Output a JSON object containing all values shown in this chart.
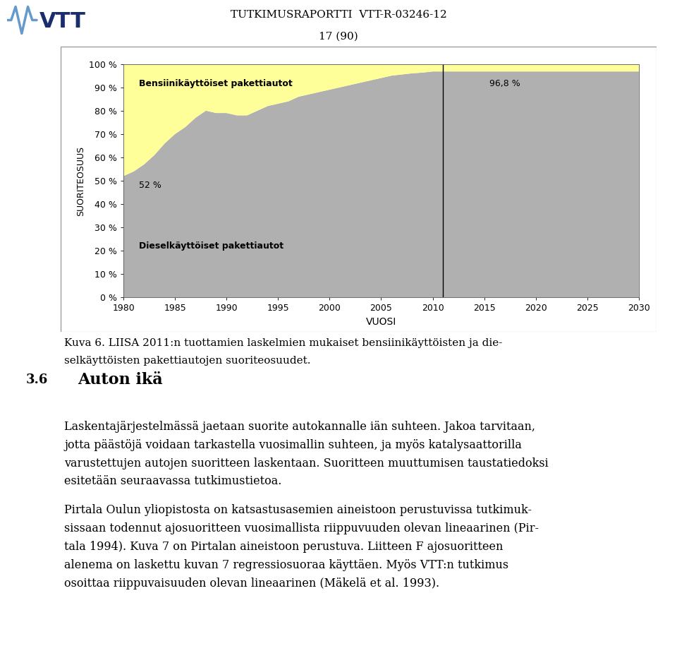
{
  "title_line1": "TUTKIMUSRAPORTTI  VTT-R-03246-12",
  "title_line2": "17 (90)",
  "ylabel": "SUORITEOSUUS",
  "xlabel": "VUOSI",
  "years": [
    1980,
    1981,
    1982,
    1983,
    1984,
    1985,
    1986,
    1987,
    1988,
    1989,
    1990,
    1991,
    1992,
    1993,
    1994,
    1995,
    1996,
    1997,
    1998,
    1999,
    2000,
    2001,
    2002,
    2003,
    2004,
    2005,
    2006,
    2007,
    2008,
    2009,
    2010,
    2011,
    2012,
    2013,
    2014,
    2015,
    2016,
    2017,
    2018,
    2019,
    2020,
    2021,
    2022,
    2023,
    2024,
    2025,
    2026,
    2027,
    2028,
    2029,
    2030
  ],
  "diesel_share": [
    52,
    54,
    57,
    61,
    66,
    70,
    73,
    77,
    80,
    79,
    79,
    78,
    78,
    80,
    82,
    83,
    84,
    86,
    87,
    88,
    89,
    90,
    91,
    92,
    93,
    94,
    95,
    95.5,
    96,
    96.3,
    96.8,
    96.8,
    96.8,
    96.8,
    96.8,
    96.8,
    96.8,
    96.8,
    96.8,
    96.8,
    96.8,
    96.8,
    96.8,
    96.8,
    96.8,
    96.8,
    96.8,
    96.8,
    96.8,
    96.8,
    96.8
  ],
  "diesel_color": "#b0b0b0",
  "petrol_color": "#ffff99",
  "vline_x": 2011,
  "vline_color": "#000000",
  "annotation_52": "52 %",
  "annotation_968": "96,8 %",
  "label_diesel": "Dieselkäyttöiset pakettiautot",
  "label_petrol": "Bensiinikäyttöiset pakettiautot",
  "yticks": [
    0,
    10,
    20,
    30,
    40,
    50,
    60,
    70,
    80,
    90,
    100
  ],
  "ytick_labels": [
    "0 %",
    "10 %",
    "20 %",
    "30 %",
    "40 %",
    "50 %",
    "60 %",
    "70 %",
    "80 %",
    "90 %",
    "100 %"
  ],
  "xticks": [
    1980,
    1985,
    1990,
    1995,
    2000,
    2005,
    2010,
    2015,
    2020,
    2025,
    2030
  ],
  "xlim": [
    1980,
    2030
  ],
  "ylim": [
    0,
    100
  ],
  "caption_line1": "Kuva 6. LIISA 2011:n tuottamien laskelmien mukaiset bensiinikäyttöisten ja die-",
  "caption_line2": "selkäyttöisten pakettiautojen suoriteosuudet.",
  "section_num": "3.6",
  "section_title": "Auton ikä",
  "body_text1_lines": [
    "Laskentajärjestelmässä jaetaan suorite autokannalle iän suhteen. Jakoa tarvitaan,",
    "jotta päästöjä voidaan tarkastella vuosimallin suhteen, ja myös katalysaattorilla",
    "varustettujen autojen suoritteen laskentaan. Suoritteen muuttumisen taustatiedoksi",
    "esitetään seuraavassa tutkimustietoa."
  ],
  "body_text2_lines": [
    "Pirtala Oulun yliopistosta on katsastusasemien aineistoon perustuvissa tutkimuk-",
    "sissaan todennut ajosuoritteen vuosimallista riippuvuuden olevan lineaarinen (Pir-",
    "tala 1994). Kuva 7 on Pirtalan aineistoon perustuva. Liitteen F ajosuoritteen",
    "alenema on laskettu kuvan 7 regressiosuoraa käyttäen. Myös VTT:n tutkimus",
    "osoittaa riippuvaisuuden olevan lineaarinen (Mäkelä et al. 1993)."
  ],
  "bg_color": "#ffffff",
  "font_size_tick_labels": 9,
  "font_size_chart_labels": 9,
  "font_size_title": 11,
  "font_size_caption": 11,
  "font_size_section_num": 13,
  "font_size_section_title": 16,
  "font_size_body": 11.5
}
